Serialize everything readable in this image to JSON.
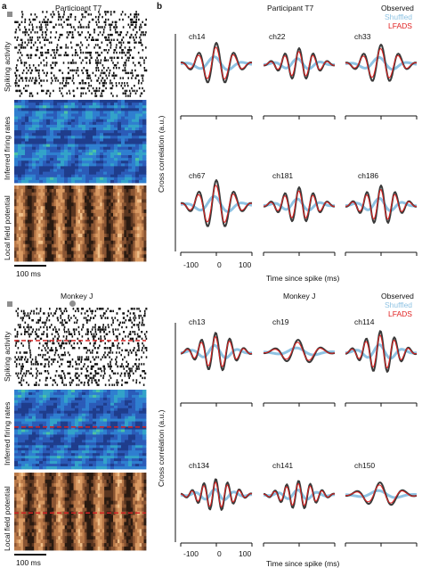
{
  "panels": {
    "a": "a",
    "b": "b"
  },
  "left": {
    "top": {
      "title": "Participant T7",
      "labels": [
        "Spiking activity",
        "Inferred firing rates",
        "Local field potential"
      ],
      "scalebar": "100 ms"
    },
    "bottom": {
      "title": "Monkey J",
      "labels": [
        "Spiking activity",
        "Inferred firing rates",
        "Local field potential"
      ],
      "scalebar": "100 ms"
    }
  },
  "right": {
    "top": {
      "title": "Participant T7",
      "legend": [
        "Observed",
        "Shuffled",
        "LFADS"
      ],
      "ylabel": "Cross correlation (a.u.)",
      "xlabel": "Time since spike (ms)",
      "xticks": [
        "-100",
        "0",
        "100"
      ],
      "rows": [
        [
          "ch14",
          "ch22",
          "ch33"
        ],
        [
          "ch67",
          "ch181",
          "ch186"
        ]
      ]
    },
    "bottom": {
      "title": "Monkey J",
      "legend": [
        "Observed",
        "Shuffled",
        "LFADS"
      ],
      "ylabel": "Cross correlation (a.u.)",
      "xlabel": "Time since spike (ms)",
      "xticks": [
        "-100",
        "0",
        "100"
      ],
      "rows": [
        [
          "ch13",
          "ch19",
          "ch114"
        ],
        [
          "ch134",
          "ch141",
          "ch150"
        ]
      ]
    }
  },
  "colors": {
    "observed": "#3a3a3a",
    "shuffled": "#8fc3e3",
    "lfads": "#e02020",
    "divider_dashed": "#d22222"
  }
}
